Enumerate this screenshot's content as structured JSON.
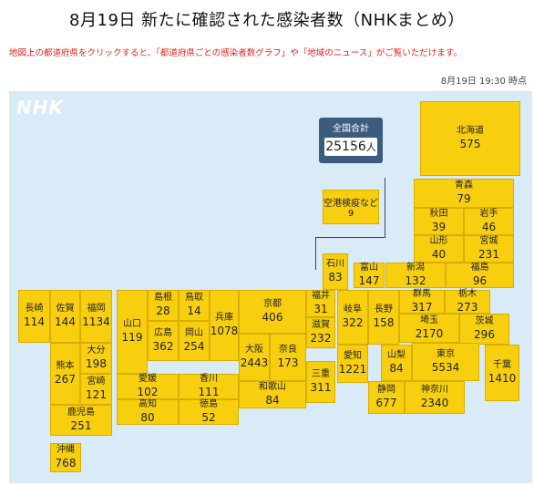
{
  "title": "8月19日 新たに確認された感染者数（NHKまとめ）",
  "notice": "地図上の都道府県をクリックすると、「都道府県ごとの感染者数グラフ」や「地域のニュース」がご覧いただけます。",
  "timestamp": "8月19日 19:30 時点",
  "logo": "NHK",
  "total": {
    "label": "全国合計",
    "value": "25156",
    "unit": "人"
  },
  "airport": {
    "name": "空港検疫など",
    "count": "9"
  },
  "prefectures": [
    {
      "name": "北海道",
      "count": "575"
    },
    {
      "name": "青森",
      "count": "79"
    },
    {
      "name": "秋田",
      "count": "39"
    },
    {
      "name": "岩手",
      "count": "46"
    },
    {
      "name": "山形",
      "count": "40"
    },
    {
      "name": "宮城",
      "count": "231"
    },
    {
      "name": "石川",
      "count": "83"
    },
    {
      "name": "富山",
      "count": "147"
    },
    {
      "name": "新潟",
      "count": "132"
    },
    {
      "name": "福島",
      "count": "96"
    },
    {
      "name": "長崎",
      "count": "114"
    },
    {
      "name": "佐賀",
      "count": "144"
    },
    {
      "name": "福岡",
      "count": "1134"
    },
    {
      "name": "山口",
      "count": "119"
    },
    {
      "name": "島根",
      "count": "28"
    },
    {
      "name": "鳥取",
      "count": "14"
    },
    {
      "name": "広島",
      "count": "362"
    },
    {
      "name": "岡山",
      "count": "254"
    },
    {
      "name": "兵庫",
      "count": "1078"
    },
    {
      "name": "京都",
      "count": "406"
    },
    {
      "name": "福井",
      "count": "31"
    },
    {
      "name": "岐阜",
      "count": "322"
    },
    {
      "name": "長野",
      "count": "158"
    },
    {
      "name": "群馬",
      "count": "317"
    },
    {
      "name": "栃木",
      "count": "273"
    },
    {
      "name": "滋賀",
      "count": "232"
    },
    {
      "name": "埼玉",
      "count": "2170"
    },
    {
      "name": "茨城",
      "count": "296"
    },
    {
      "name": "大阪",
      "count": "2443"
    },
    {
      "name": "奈良",
      "count": "173"
    },
    {
      "name": "三重",
      "count": "311"
    },
    {
      "name": "愛知",
      "count": "1221"
    },
    {
      "name": "山梨",
      "count": "84"
    },
    {
      "name": "東京",
      "count": "5534"
    },
    {
      "name": "千葉",
      "count": "1410"
    },
    {
      "name": "大分",
      "count": "198"
    },
    {
      "name": "熊本",
      "count": "267"
    },
    {
      "name": "宮崎",
      "count": "121"
    },
    {
      "name": "愛媛",
      "count": "102"
    },
    {
      "name": "香川",
      "count": "111"
    },
    {
      "name": "高知",
      "count": "80"
    },
    {
      "name": "徳島",
      "count": "52"
    },
    {
      "name": "和歌山",
      "count": "84"
    },
    {
      "name": "静岡",
      "count": "677"
    },
    {
      "name": "神奈川",
      "count": "2340"
    },
    {
      "name": "鹿児島",
      "count": "251"
    },
    {
      "name": "沖縄",
      "count": "768"
    }
  ],
  "colors": {
    "prefecture_fill": "#f7cf0e",
    "map_background": "#d8ebf7",
    "total_box": "#3c5c7e",
    "notice_text": "#e8231c"
  }
}
